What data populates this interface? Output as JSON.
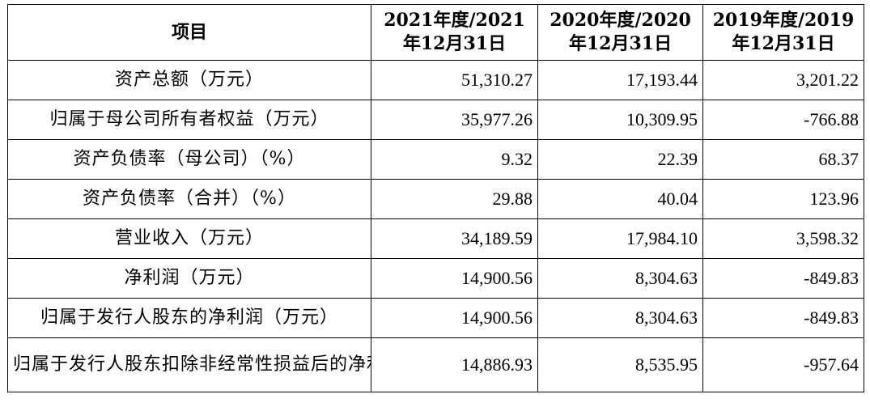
{
  "table": {
    "headers": [
      "项目",
      "2021年度/2021年12月31日",
      "2020年度/2020年12月31日",
      "2019年度/2019年12月31日"
    ],
    "rows": [
      {
        "item": "资产总额（万元）",
        "v2021": "51,310.27",
        "v2020": "17,193.44",
        "v2019": "3,201.22"
      },
      {
        "item": "归属于母公司所有者权益（万元）",
        "v2021": "35,977.26",
        "v2020": "10,309.95",
        "v2019": "-766.88"
      },
      {
        "item": "资产负债率（母公司）（%）",
        "v2021": "9.32",
        "v2020": "22.39",
        "v2019": "68.37"
      },
      {
        "item": "资产负债率（合并）（%）",
        "v2021": "29.88",
        "v2020": "40.04",
        "v2019": "123.96"
      },
      {
        "item": "营业收入（万元）",
        "v2021": "34,189.59",
        "v2020": "17,984.10",
        "v2019": "3,598.32"
      },
      {
        "item": "净利润（万元）",
        "v2021": "14,900.56",
        "v2020": "8,304.63",
        "v2019": "-849.83"
      },
      {
        "item": "归属于发行人股东的净利润（万元）",
        "v2021": "14,900.56",
        "v2020": "8,304.63",
        "v2019": "-849.83"
      },
      {
        "item": "归属于发行人股东扣除非经常性损益后的净利润（万元）",
        "v2021": "14,886.93",
        "v2020": "8,535.95",
        "v2019": "-957.64"
      }
    ]
  }
}
